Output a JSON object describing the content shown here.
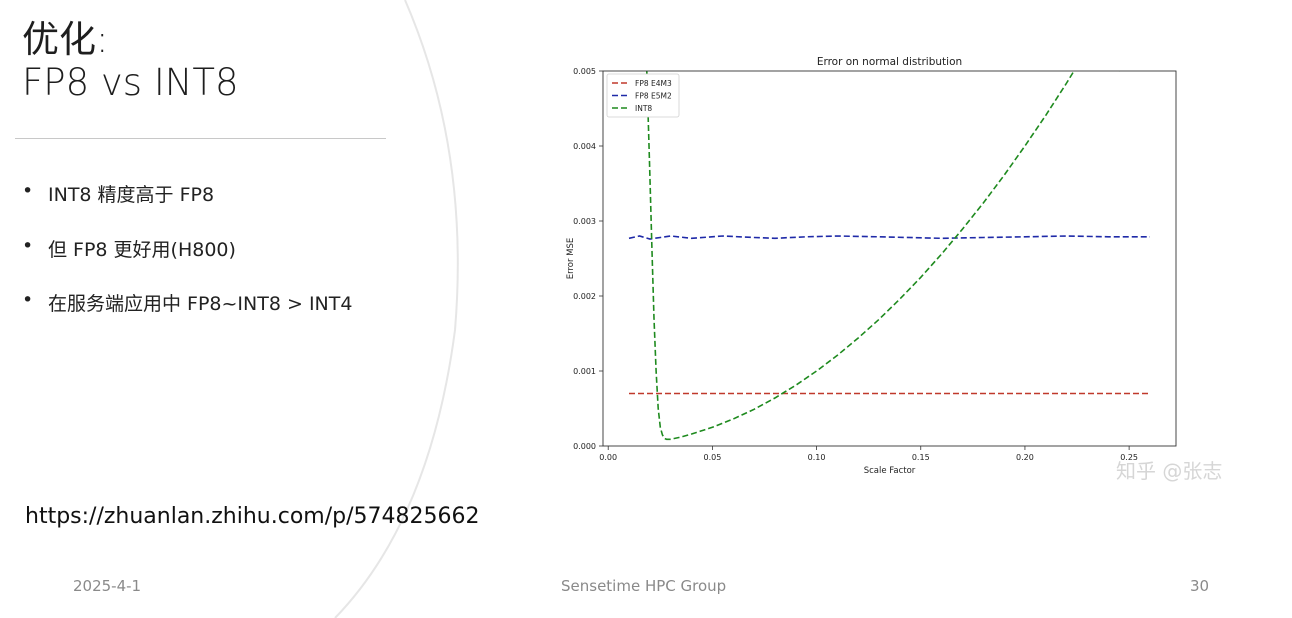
{
  "slide": {
    "title_line1": "优化:",
    "title_line2": "FP8 vs INT8",
    "bullets": [
      "INT8 精度高于 FP8",
      "但 FP8 更好用(H800)",
      "在服务端应用中 FP8~INT8 > INT4"
    ],
    "link": "https://zhuanlan.zhihu.com/p/574825662",
    "footer_date": "2025-4-1",
    "footer_center": "Sensetime HPC Group",
    "page_number": "30",
    "watermark": "知乎 @张志"
  },
  "chart_data": {
    "type": "line",
    "title": "Error on normal distribution",
    "xlabel": "Scale Factor",
    "ylabel": "Error MSE",
    "xlim": [
      -0.0025,
      0.2725
    ],
    "ylim": [
      0,
      0.005
    ],
    "xticks": [
      0.0,
      0.05,
      0.1,
      0.15,
      0.2,
      0.25
    ],
    "xtick_labels": [
      "0.00",
      "0.05",
      "0.10",
      "0.15",
      "0.20",
      "0.25"
    ],
    "yticks": [
      0,
      0.001,
      0.002,
      0.003,
      0.004,
      0.005
    ],
    "ytick_labels": [
      "0.000",
      "0.001",
      "0.002",
      "0.003",
      "0.004",
      "0.005"
    ],
    "grid": false,
    "legend_position": "top-left",
    "series": [
      {
        "name": "FP8 E4M3",
        "color": "#c0392b",
        "x": [
          0.01,
          0.02,
          0.03,
          0.04,
          0.05,
          0.06,
          0.08,
          0.1,
          0.12,
          0.14,
          0.16,
          0.18,
          0.2,
          0.22,
          0.24,
          0.26
        ],
        "y": [
          0.0007,
          0.0007,
          0.0007,
          0.0007,
          0.0007,
          0.0007,
          0.0007,
          0.0007,
          0.0007,
          0.0007,
          0.0007,
          0.0007,
          0.0007,
          0.0007,
          0.0007,
          0.0007
        ]
      },
      {
        "name": "FP8 E5M2",
        "color": "#1f2aa8",
        "x": [
          0.01,
          0.015,
          0.02,
          0.03,
          0.04,
          0.055,
          0.07,
          0.08,
          0.095,
          0.11,
          0.13,
          0.16,
          0.18,
          0.2,
          0.22,
          0.24,
          0.26
        ],
        "y": [
          0.00277,
          0.0028,
          0.00276,
          0.0028,
          0.00277,
          0.0028,
          0.00278,
          0.00277,
          0.00279,
          0.0028,
          0.00279,
          0.00277,
          0.00278,
          0.00279,
          0.0028,
          0.00279,
          0.00279
        ],
        "dummy": null
      },
      {
        "name": "INT8",
        "color": "#1e8a1e",
        "x": [
          0.0185,
          0.0195,
          0.02,
          0.021,
          0.022,
          0.023,
          0.024,
          0.025,
          0.026,
          0.027,
          0.028,
          0.03,
          0.035,
          0.04,
          0.05,
          0.06,
          0.07,
          0.08,
          0.09,
          0.1,
          0.11,
          0.12,
          0.13,
          0.14,
          0.15,
          0.16,
          0.17,
          0.18,
          0.19,
          0.2,
          0.21,
          0.22,
          0.23,
          0.2455
        ],
        "y": [
          0.005,
          0.0041,
          0.0036,
          0.0026,
          0.0017,
          0.001,
          0.0005,
          0.00025,
          0.00015,
          0.0001,
          9e-05,
          9e-05,
          0.00012,
          0.00016,
          0.00025,
          0.00036,
          0.00049,
          0.00064,
          0.00081,
          0.001,
          0.00121,
          0.00144,
          0.00169,
          0.00196,
          0.00225,
          0.00256,
          0.00289,
          0.00324,
          0.00361,
          0.004,
          0.00441,
          0.00484,
          0.00529,
          0.005
        ]
      }
    ]
  }
}
